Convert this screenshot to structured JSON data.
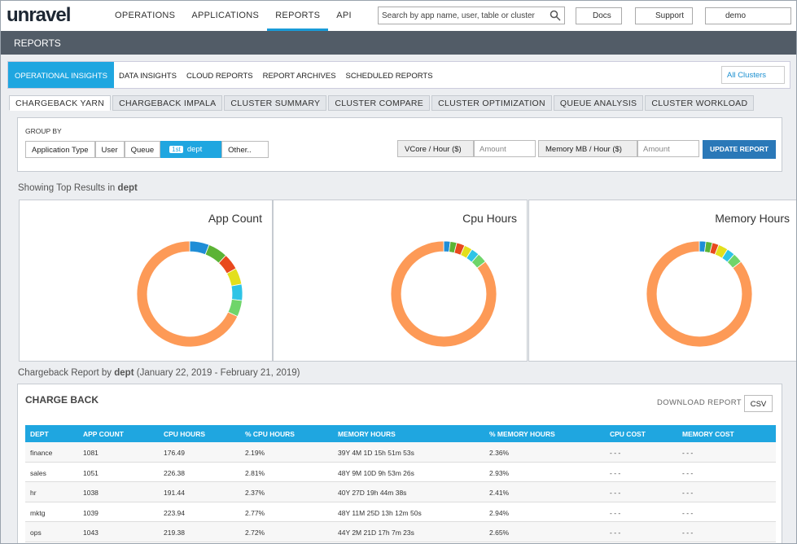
{
  "header": {
    "logo": "unravel",
    "nav": [
      "OPERATIONS",
      "APPLICATIONS",
      "REPORTS",
      "API"
    ],
    "search_placeholder": "Search by app name, user, table or cluster",
    "docs": "Docs",
    "support": "Support",
    "user": "demo"
  },
  "page_title": "REPORTS",
  "report_tabs": [
    "OPERATIONAL INSIGHTS",
    "DATA INSIGHTS",
    "CLOUD REPORTS",
    "REPORT ARCHIVES",
    "SCHEDULED REPORTS"
  ],
  "cluster_select": "All Clusters",
  "sub_tabs": [
    "CHARGEBACK YARN",
    "CHARGEBACK IMPALA",
    "CLUSTER SUMMARY",
    "CLUSTER COMPARE",
    "CLUSTER OPTIMIZATION",
    "QUEUE ANALYSIS",
    "CLUSTER WORKLOAD"
  ],
  "group_by": {
    "label": "GROUP BY",
    "options": [
      "Application Type",
      "User",
      "Queue"
    ],
    "selected_badge": "1st",
    "selected": "dept",
    "other": "Other..",
    "vcore_label": "VCore / Hour ($)",
    "memory_label": "Memory MB / Hour ($)",
    "amount_placeholder": "Amount",
    "update": "UPDATE REPORT"
  },
  "showing": {
    "prefix": "Showing Top Results in",
    "field": "dept"
  },
  "chart_data": [
    {
      "type": "pie",
      "title": "App Count",
      "values": [
        6,
        6,
        5,
        5,
        5,
        5,
        68
      ],
      "colors": [
        "#1f8dd6",
        "#5cb335",
        "#e8491d",
        "#e3df1c",
        "#2ec4e6",
        "#6fd56a",
        "#fd9a57"
      ]
    },
    {
      "type": "pie",
      "title": "Cpu Hours",
      "values": [
        2,
        2,
        2.5,
        2.5,
        2.5,
        3,
        85.5
      ],
      "colors": [
        "#1f8dd6",
        "#5cb335",
        "#e8491d",
        "#e3df1c",
        "#2ec4e6",
        "#6fd56a",
        "#fd9a57"
      ]
    },
    {
      "type": "pie",
      "title": "Memory Hours",
      "values": [
        2,
        2,
        2,
        3,
        2.5,
        3,
        85.5
      ],
      "colors": [
        "#1f8dd6",
        "#5cb335",
        "#e8491d",
        "#e3df1c",
        "#2ec4e6",
        "#6fd56a",
        "#fd9a57"
      ]
    }
  ],
  "report_caption": {
    "prefix": "Chargeback Report by",
    "field": "dept",
    "range": "(January 22, 2019 - February 21, 2019)"
  },
  "chargeback": {
    "title": "CHARGE BACK",
    "download": "DOWNLOAD REPORT",
    "csv": "CSV",
    "columns": [
      "DEPT",
      "APP COUNT",
      "CPU HOURS",
      "% CPU HOURS",
      "MEMORY HOURS",
      "% MEMORY HOURS",
      "CPU COST",
      "MEMORY COST"
    ],
    "rows": [
      [
        "finance",
        "1081",
        "176.49",
        "2.19%",
        "39Y 4M 1D 15h 51m 53s",
        "2.36%",
        "- - -",
        "- - -"
      ],
      [
        "sales",
        "1051",
        "226.38",
        "2.81%",
        "48Y 9M 10D 9h 53m 26s",
        "2.93%",
        "- - -",
        "- - -"
      ],
      [
        "hr",
        "1038",
        "191.44",
        "2.37%",
        "40Y 27D 19h 44m 38s",
        "2.41%",
        "- - -",
        "- - -"
      ],
      [
        "mktg",
        "1039",
        "223.94",
        "2.77%",
        "48Y 11M 25D 13h 12m 50s",
        "2.94%",
        "- - -",
        "- - -"
      ],
      [
        "ops",
        "1043",
        "219.38",
        "2.72%",
        "44Y 2M 21D 17h 7m 23s",
        "2.65%",
        "- - -",
        "- - -"
      ]
    ]
  }
}
